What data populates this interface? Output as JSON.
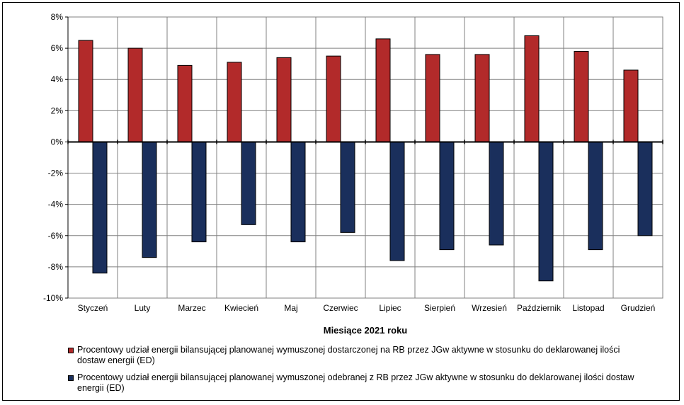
{
  "chart_data": {
    "type": "bar",
    "categories": [
      "Styczeń",
      "Luty",
      "Marzec",
      "Kwiecień",
      "Maj",
      "Czerwiec",
      "Lipiec",
      "Sierpień",
      "Wrzesień",
      "Październik",
      "Listopad",
      "Grudzień"
    ],
    "series": [
      {
        "name": "Procentowy udział energii bilansującej planowanej wymuszonej dostarczonej na RB przez JGw aktywne w stosunku do deklarowanej ilości dostaw energii (ED)",
        "color": "#B22A2A",
        "values": [
          6.5,
          6.0,
          4.9,
          5.1,
          5.4,
          5.5,
          6.6,
          5.6,
          5.6,
          6.8,
          5.8,
          4.6
        ]
      },
      {
        "name": "Procentowy udział energii bilansującej planowanej wymuszonej odebranej z RB przez JGw aktywne w stosunku do deklarowanej ilości dostaw energii (ED)",
        "color": "#1A2F5C",
        "values": [
          -8.4,
          -7.4,
          -6.4,
          -5.3,
          -6.4,
          -5.8,
          -7.6,
          -6.9,
          -6.6,
          -8.9,
          -6.9,
          -6.0
        ]
      }
    ],
    "ylim": [
      -10,
      8
    ],
    "yticks": [
      8,
      6,
      4,
      2,
      0,
      -2,
      -4,
      -6,
      -8,
      -10
    ],
    "ytick_labels": [
      "8%",
      "6%",
      "4%",
      "2%",
      "0%",
      "-2%",
      "-4%",
      "-6%",
      "-8%",
      "-10%"
    ],
    "xlabel": "Miesiące 2021  roku",
    "ylabel": "",
    "grid": true,
    "legend_position": "bottom"
  }
}
